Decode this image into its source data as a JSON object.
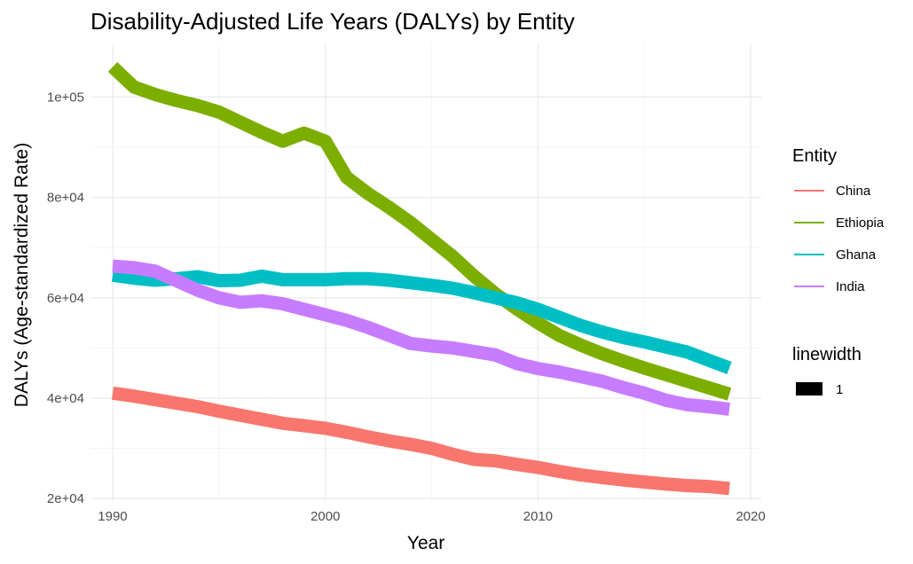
{
  "chart_data": {
    "type": "line",
    "title": "Disability-Adjusted Life Years (DALYs) by Entity",
    "xlabel": "Year",
    "ylabel": "DALYs (Age-standardized Rate)",
    "xlim": [
      1989,
      2020.5
    ],
    "ylim": [
      19500,
      110500
    ],
    "x_ticks": [
      1990,
      2000,
      2010,
      2020
    ],
    "y_ticks": [
      20000,
      40000,
      60000,
      80000,
      100000
    ],
    "y_tick_labels": [
      "2e+04",
      "4e+04",
      "6e+04",
      "8e+04",
      "1e+05"
    ],
    "grid": true,
    "legend_placement": "right",
    "legend": {
      "title": "Entity",
      "linewidth_title": "linewidth",
      "linewidth_label": "1"
    },
    "x": [
      1990,
      1991,
      1992,
      1993,
      1994,
      1995,
      1996,
      1997,
      1998,
      1999,
      2000,
      2001,
      2002,
      2003,
      2004,
      2005,
      2006,
      2007,
      2008,
      2009,
      2010,
      2011,
      2012,
      2013,
      2014,
      2015,
      2016,
      2017,
      2018,
      2019
    ],
    "series": [
      {
        "name": "China",
        "color": "#F8766D",
        "values": [
          41000,
          40400,
          39700,
          39000,
          38300,
          37400,
          36600,
          35800,
          35000,
          34500,
          34000,
          33200,
          32300,
          31500,
          30800,
          30000,
          28800,
          27800,
          27500,
          26800,
          26200,
          25400,
          24700,
          24200,
          23700,
          23300,
          22900,
          22600,
          22400,
          22000
        ]
      },
      {
        "name": "Ethiopia",
        "color": "#7CAE00",
        "values": [
          106000,
          102000,
          100500,
          99300,
          98300,
          97000,
          95000,
          93000,
          91200,
          92800,
          91200,
          84000,
          80800,
          78000,
          75000,
          71600,
          68200,
          64300,
          60800,
          57800,
          55000,
          52500,
          50600,
          48900,
          47400,
          46000,
          44700,
          43400,
          42100,
          40800
        ]
      },
      {
        "name": "Ghana",
        "color": "#00BFC4",
        "values": [
          64500,
          63900,
          63500,
          63800,
          64200,
          63400,
          63500,
          64300,
          63600,
          63600,
          63600,
          63800,
          63800,
          63500,
          63000,
          62500,
          61900,
          61000,
          60000,
          59000,
          57700,
          56100,
          54500,
          53200,
          52100,
          51200,
          50200,
          49200,
          47600,
          46000
        ]
      },
      {
        "name": "India",
        "color": "#C77CFF",
        "values": [
          66300,
          66000,
          65300,
          63400,
          61500,
          60000,
          59100,
          59400,
          58800,
          57700,
          56600,
          55500,
          54100,
          52500,
          50900,
          50400,
          50000,
          49300,
          48600,
          46900,
          45900,
          45200,
          44300,
          43400,
          42100,
          41000,
          39600,
          38700,
          38300,
          37800
        ]
      }
    ]
  }
}
